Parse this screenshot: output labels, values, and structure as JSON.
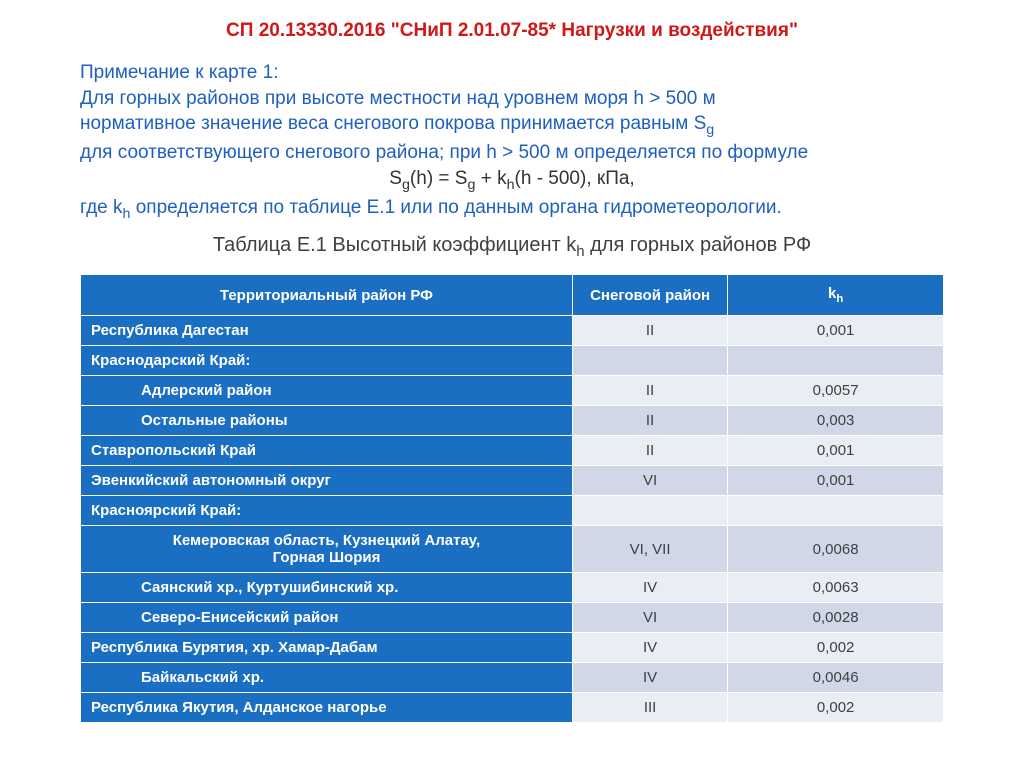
{
  "doc_title": "СП 20.13330.2016 \"СНиП 2.01.07-85* Нагрузки и воздействия\"",
  "note": {
    "line1": "Примечание к карте 1:",
    "line2": "Для горных районов при высоте местности над уровнем моря h > 500 м",
    "line3_a": "нормативное значение веса снегового покрова принимается равным S",
    "line3_b": "g",
    "line4": "для соответствующего снегового района; при h > 500 м  определяется по формуле",
    "formula_a": "S",
    "formula_b": "g",
    "formula_c": "(h) = S",
    "formula_d": "g",
    "formula_e": " + k",
    "formula_f": "h",
    "formula_g": "(h - 500), кПа,",
    "line5_a": "где k",
    "line5_b": "h",
    "line5_c": " определяется по таблице E.1 или по данным органа гидрометеорологии."
  },
  "caption_a": "Таблица Е.1 Высотный коэффициент k",
  "caption_b": "h",
  "caption_c": " для горных районов РФ",
  "headers": {
    "col1": "Территориальный район РФ",
    "col2": "Снеговой район",
    "col3_a": "k",
    "col3_b": "h"
  },
  "rows": [
    {
      "name": "Республика Дагестан",
      "indent": false,
      "zone": "II",
      "kh": "0,001",
      "alt": false
    },
    {
      "name": "Краснодарский Край:",
      "indent": false,
      "zone": "",
      "kh": "",
      "alt": true
    },
    {
      "name": "Адлерский район",
      "indent": true,
      "zone": "II",
      "kh": "0,0057",
      "alt": false
    },
    {
      "name": "Остальные районы",
      "indent": true,
      "zone": "II",
      "kh": "0,003",
      "alt": true
    },
    {
      "name": "Ставропольский Край",
      "indent": false,
      "zone": "II",
      "kh": "0,001",
      "alt": false
    },
    {
      "name": "Эвенкийский автономный округ",
      "indent": false,
      "zone": "VI",
      "kh": "0,001",
      "alt": true
    },
    {
      "name": "Красноярский Край:",
      "indent": false,
      "zone": "",
      "kh": "",
      "alt": false
    },
    {
      "name": "Кемеровская область, Кузнецкий Алатау,\nГорная Шория",
      "indent": true,
      "center": true,
      "zone": "VI, VII",
      "kh": "0,0068",
      "alt": true
    },
    {
      "name": "Саянский хр., Куртушибинский хр.",
      "indent": true,
      "zone": "IV",
      "kh": "0,0063",
      "alt": false
    },
    {
      "name": "Северо-Енисейский район",
      "indent": true,
      "zone": "VI",
      "kh": "0,0028",
      "alt": true
    },
    {
      "name": "Республика Бурятия, хр. Хамар-Дабам",
      "indent": false,
      "zone": "IV",
      "kh": "0,002",
      "alt": false
    },
    {
      "name": "Байкальский хр.",
      "indent": true,
      "zone": "IV",
      "kh": "0,0046",
      "alt": true
    },
    {
      "name": "Республика Якутия, Алданское нагорье",
      "indent": false,
      "zone": "III",
      "kh": "0,002",
      "alt": false
    }
  ]
}
